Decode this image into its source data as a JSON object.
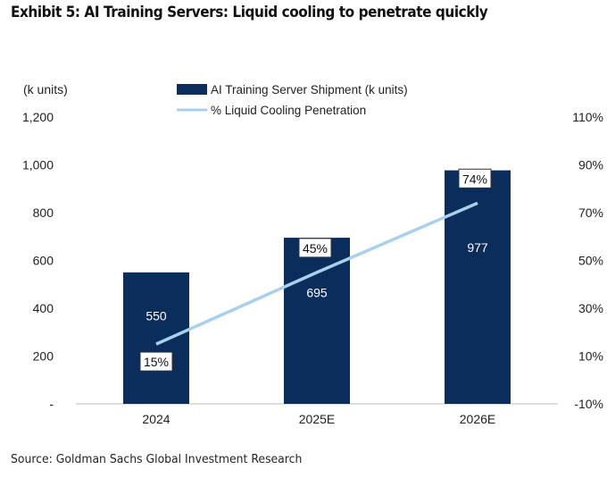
{
  "title": "Exhibit 5: AI Training Servers: Liquid cooling to penetrate quickly",
  "source": "Source: Goldman Sachs Global Investment Research",
  "chart_data": {
    "type": "bar",
    "categories": [
      "2024",
      "2025E",
      "2026E"
    ],
    "series": [
      {
        "name": "AI Training Server Shipment (k units)",
        "type": "bar",
        "axis": "left",
        "values": [
          550,
          695,
          977
        ],
        "labels": [
          "550",
          "695",
          "977"
        ],
        "color": "#0b2d5c"
      },
      {
        "name": "% Liquid Cooling Penetration",
        "type": "line",
        "axis": "right",
        "values": [
          15,
          45,
          74
        ],
        "labels": [
          "15%",
          "45%",
          "74%"
        ],
        "color": "#a9d0ec"
      }
    ],
    "y_left": {
      "label": "(k units)",
      "ylim": [
        0,
        1200
      ],
      "ticks": [
        "-",
        "200",
        "400",
        "600",
        "800",
        "1,000",
        "1,200"
      ]
    },
    "y_right": {
      "ylim": [
        -10,
        110
      ],
      "ticks": [
        "-10%",
        "10%",
        "30%",
        "50%",
        "70%",
        "90%",
        "110%"
      ]
    },
    "legend": "top-center",
    "grid": false
  }
}
